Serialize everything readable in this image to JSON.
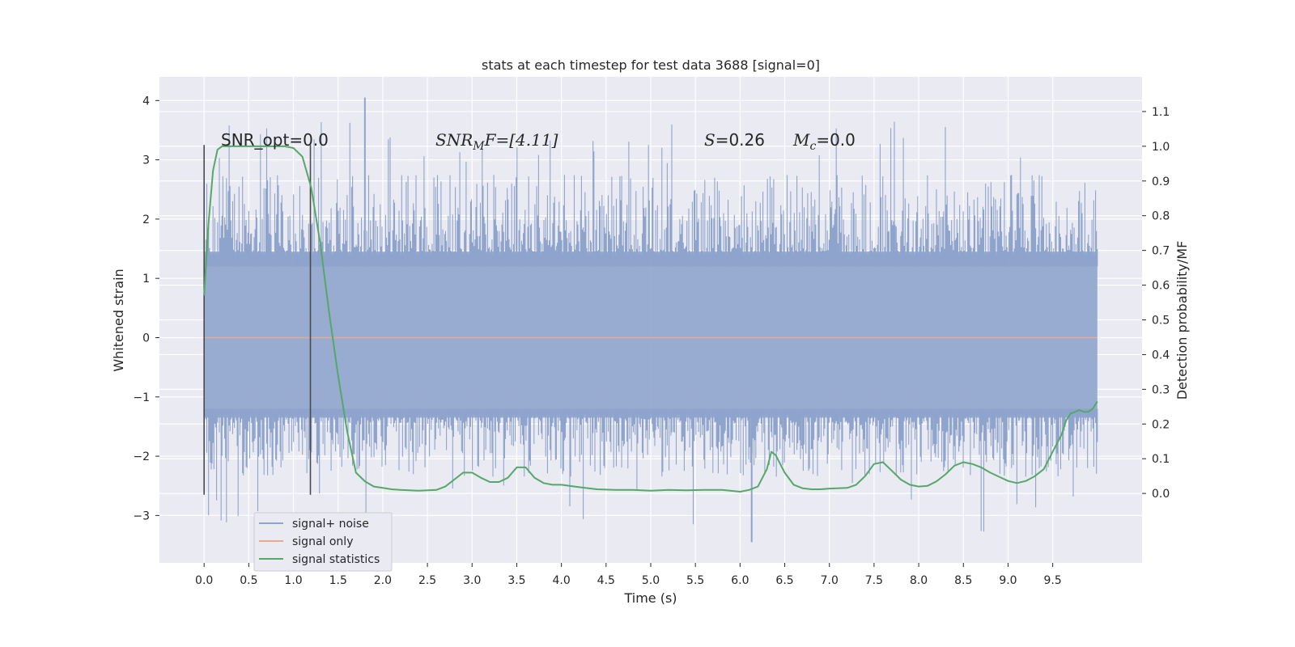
{
  "chart_data": {
    "type": "line",
    "title": "stats at each timestep for test data 3688 [signal=0]",
    "xlabel": "Time (s)",
    "ylabel": "Whitened strain",
    "ylabel_right": "Detection probability/MF",
    "xlim": [
      -0.5,
      10.5
    ],
    "ylim": [
      -3.8,
      4.4
    ],
    "ylim_right": [
      -0.2,
      1.2
    ],
    "x_ticks": [
      "0.0",
      "0.5",
      "1.0",
      "1.5",
      "2.0",
      "2.5",
      "3.0",
      "3.5",
      "4.0",
      "4.5",
      "5.0",
      "5.5",
      "6.0",
      "6.5",
      "7.0",
      "7.5",
      "8.0",
      "8.5",
      "9.0",
      "9.5"
    ],
    "y_ticks": [
      "−3",
      "−2",
      "−1",
      "0",
      "1",
      "2",
      "3",
      "4"
    ],
    "y_right_ticks": [
      "0.0",
      "0.1",
      "0.2",
      "0.3",
      "0.4",
      "0.5",
      "0.6",
      "0.7",
      "0.8",
      "0.9",
      "1.0",
      "1.1"
    ],
    "grid": true,
    "legend_position": "bottom-left",
    "annotations": {
      "snr_opt": "SNR_opt=0.0",
      "snr_mf_prefix": "SNR",
      "snr_mf_sub": "M",
      "snr_mf_suffix": "F=[4.11]",
      "s_var": "S",
      "s_val": "=0.26",
      "mc_var": "M",
      "mc_sub": "c",
      "mc_val": "=0.0"
    },
    "vlines_x": [
      0.0,
      1.19
    ],
    "series": [
      {
        "name": "signal+ noise",
        "color": "#8fa4cc",
        "x_range": [
          0.0,
          10.0
        ],
        "band": {
          "core_min": -1.35,
          "core_max": 1.45,
          "peak_min": -3.45,
          "peak_max": 4.05
        }
      },
      {
        "name": "signal only",
        "color": "#e8a98c",
        "x": [
          0.0,
          10.0
        ],
        "y": [
          0.0,
          0.0
        ]
      },
      {
        "name": "signal statistics",
        "color": "#55a868",
        "axis": "right",
        "x": [
          0.0,
          0.05,
          0.1,
          0.15,
          0.2,
          0.3,
          0.5,
          0.7,
          0.9,
          1.0,
          1.1,
          1.2,
          1.3,
          1.4,
          1.5,
          1.6,
          1.7,
          1.8,
          1.9,
          2.0,
          2.1,
          2.2,
          2.4,
          2.6,
          2.7,
          2.8,
          2.9,
          3.0,
          3.1,
          3.2,
          3.3,
          3.4,
          3.5,
          3.6,
          3.7,
          3.8,
          3.9,
          4.0,
          4.2,
          4.4,
          4.6,
          4.8,
          5.0,
          5.2,
          5.4,
          5.6,
          5.8,
          6.0,
          6.1,
          6.2,
          6.3,
          6.35,
          6.4,
          6.5,
          6.6,
          6.7,
          6.8,
          6.9,
          7.0,
          7.2,
          7.3,
          7.4,
          7.5,
          7.6,
          7.7,
          7.8,
          7.9,
          8.0,
          8.1,
          8.2,
          8.3,
          8.4,
          8.5,
          8.6,
          8.7,
          8.8,
          8.9,
          9.0,
          9.1,
          9.2,
          9.3,
          9.4,
          9.5,
          9.6,
          9.65,
          9.7,
          9.8,
          9.85,
          9.9,
          9.95,
          10.0
        ],
        "y": [
          0.57,
          0.78,
          0.93,
          0.99,
          1.0,
          1.0,
          1.0,
          1.0,
          1.0,
          0.995,
          0.97,
          0.88,
          0.72,
          0.52,
          0.34,
          0.18,
          0.06,
          0.035,
          0.02,
          0.016,
          0.012,
          0.01,
          0.008,
          0.01,
          0.02,
          0.04,
          0.06,
          0.06,
          0.045,
          0.033,
          0.033,
          0.045,
          0.075,
          0.075,
          0.045,
          0.03,
          0.025,
          0.025,
          0.018,
          0.012,
          0.01,
          0.01,
          0.008,
          0.01,
          0.009,
          0.01,
          0.01,
          0.005,
          0.01,
          0.02,
          0.07,
          0.12,
          0.11,
          0.06,
          0.025,
          0.015,
          0.012,
          0.012,
          0.014,
          0.016,
          0.025,
          0.05,
          0.085,
          0.09,
          0.065,
          0.04,
          0.025,
          0.02,
          0.022,
          0.035,
          0.055,
          0.08,
          0.09,
          0.085,
          0.075,
          0.06,
          0.048,
          0.036,
          0.03,
          0.036,
          0.05,
          0.07,
          0.12,
          0.17,
          0.21,
          0.23,
          0.24,
          0.235,
          0.235,
          0.245,
          0.265
        ]
      }
    ]
  }
}
